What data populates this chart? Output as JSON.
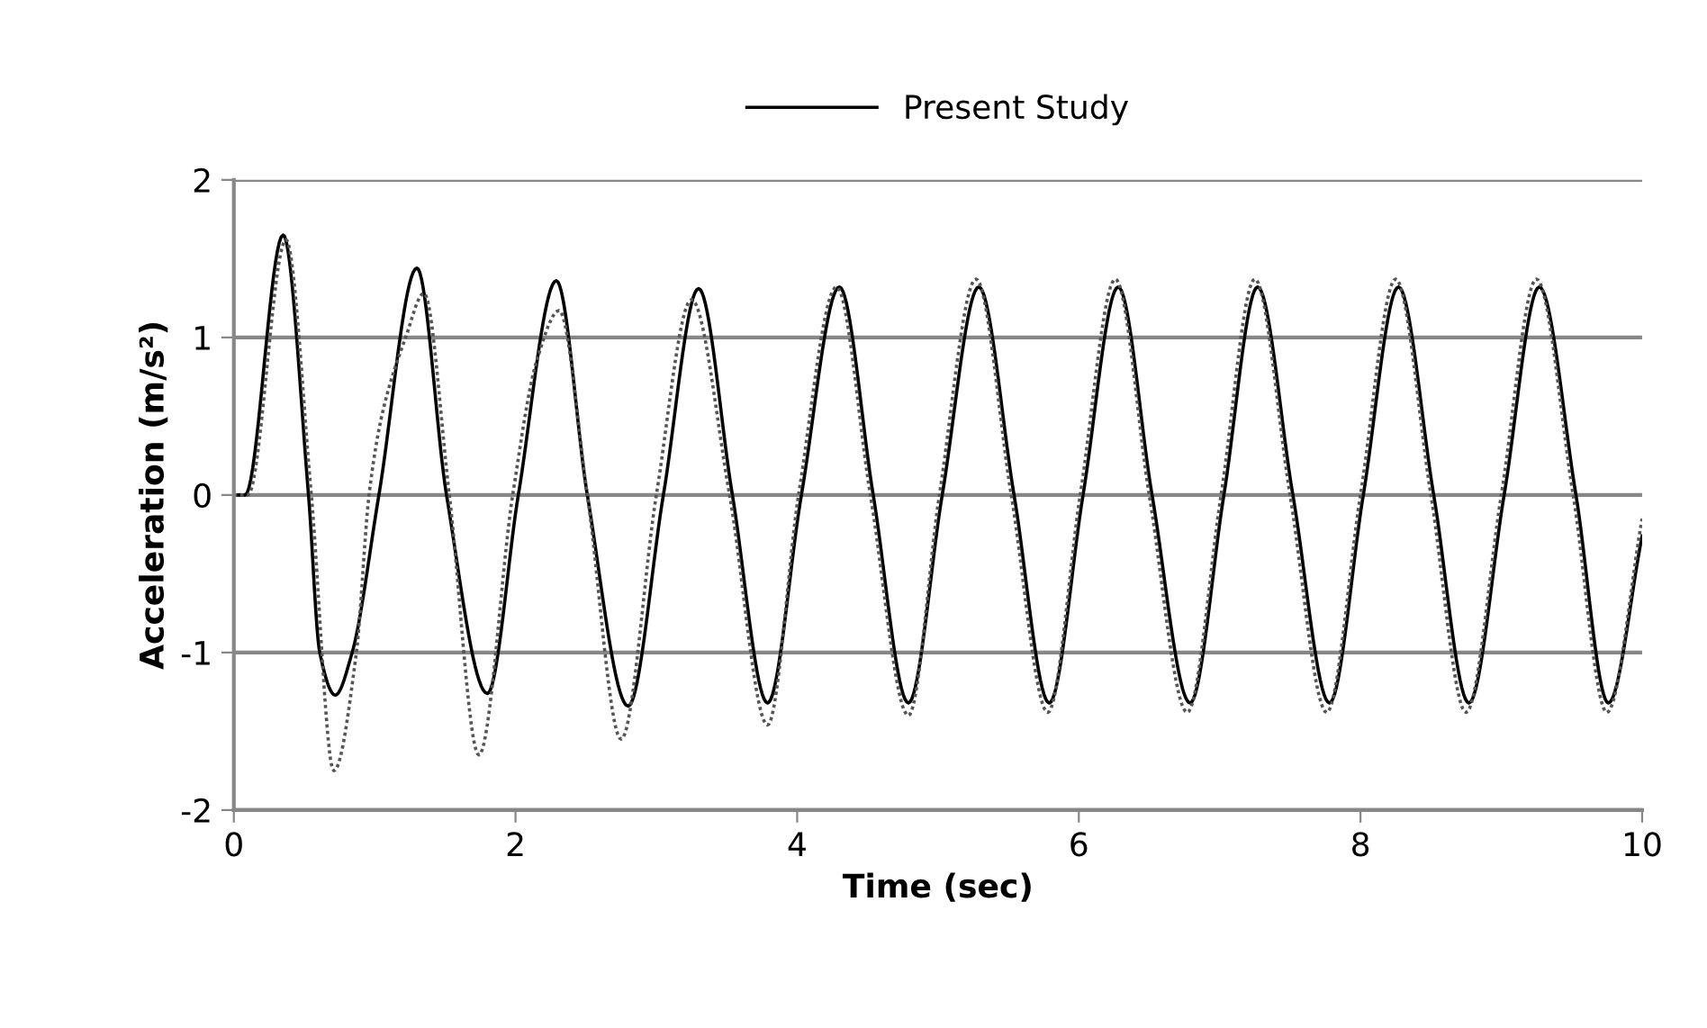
{
  "chart_data": {
    "type": "line",
    "xlabel": "Time (sec)",
    "ylabel": "Acceleration (m/s²)",
    "xlim": [
      0,
      10
    ],
    "xticks": [
      0,
      2,
      4,
      6,
      8,
      10
    ],
    "ylim": [
      -2,
      2
    ],
    "yticks": [
      -2,
      -1,
      0,
      1,
      2
    ],
    "grid": "y",
    "legend": "top",
    "marker": "none",
    "series": [
      {
        "name": "Present Study",
        "color": "#000000",
        "line_style": "solid",
        "x": [
          0,
          0.08,
          0.35,
          0.53,
          0.61,
          0.72,
          0.84,
          1.03,
          1.3,
          1.51,
          1.8,
          2.02,
          2.29,
          2.51,
          2.8,
          3.05,
          3.3,
          3.54,
          3.79,
          4.03,
          4.3,
          4.54,
          4.79,
          5.03,
          5.29,
          5.54,
          5.79,
          6.03,
          6.28,
          6.52,
          6.79,
          7.03,
          7.27,
          7.52,
          7.78,
          8.02,
          8.27,
          8.52,
          8.77,
          9.02,
          9.27,
          9.53,
          9.76,
          10
        ],
        "values": [
          0,
          0,
          1.65,
          0,
          -1.0,
          -1.27,
          -1.0,
          0,
          1.44,
          0,
          -1.26,
          0,
          1.36,
          0,
          -1.34,
          0,
          1.31,
          0,
          -1.32,
          0,
          1.32,
          0,
          -1.32,
          0,
          1.32,
          0,
          -1.32,
          0,
          1.32,
          0,
          -1.32,
          0,
          1.32,
          0,
          -1.32,
          0,
          1.32,
          0,
          -1.32,
          0,
          1.32,
          0,
          -1.32,
          -0.26
        ]
      },
      {
        "color": "#555555",
        "line_style": "dotted",
        "x": [
          0,
          0.1,
          0.37,
          0.55,
          0.71,
          0.87,
          0.96,
          1.05,
          1.22,
          1.35,
          1.53,
          1.74,
          1.98,
          2.15,
          2.31,
          2.51,
          2.75,
          3.0,
          3.25,
          3.52,
          3.79,
          4.01,
          4.28,
          4.52,
          4.79,
          5.01,
          5.27,
          5.52,
          5.78,
          6.01,
          6.26,
          6.5,
          6.77,
          7.01,
          7.25,
          7.5,
          7.76,
          8.0,
          8.25,
          8.5,
          8.75,
          9.0,
          9.25,
          9.51,
          9.75,
          10
        ],
        "values": [
          0,
          0,
          1.62,
          0,
          -1.75,
          -1.0,
          0,
          0.5,
          1.0,
          1.28,
          0,
          -1.65,
          0,
          0.85,
          1.17,
          0,
          -1.55,
          0,
          1.24,
          0,
          -1.46,
          0,
          1.32,
          0,
          -1.4,
          0,
          1.37,
          0,
          -1.38,
          0,
          1.37,
          0,
          -1.38,
          0,
          1.37,
          0,
          -1.38,
          0,
          1.37,
          0,
          -1.38,
          0,
          1.37,
          0,
          -1.38,
          -0.15
        ]
      }
    ]
  }
}
